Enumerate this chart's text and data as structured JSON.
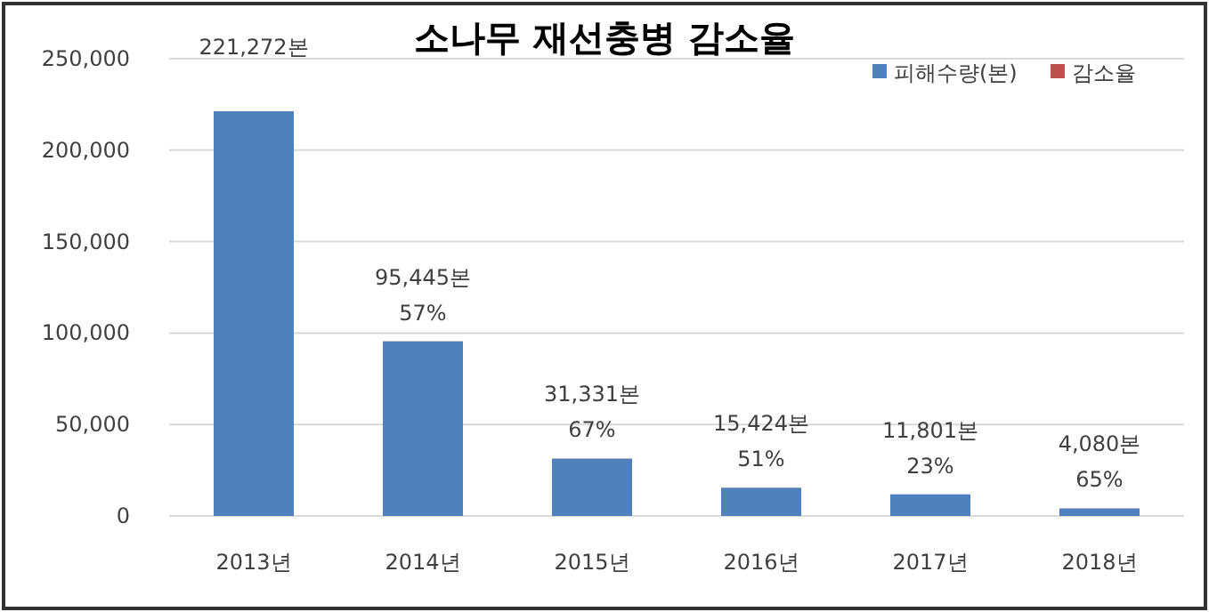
{
  "chart_data": {
    "type": "bar",
    "title": "소나무 재선충병 감소율",
    "categories": [
      "2013년",
      "2014년",
      "2015년",
      "2016년",
      "2017년",
      "2018년"
    ],
    "stacked": true,
    "legend": "top right",
    "grid": "y",
    "ylim": [
      0,
      250000
    ],
    "yticks": [
      {
        "value": 0,
        "label": "0"
      },
      {
        "value": 50000,
        "label": "50,000"
      },
      {
        "value": 100000,
        "label": "100,000"
      },
      {
        "value": 150000,
        "label": "150,000"
      },
      {
        "value": 200000,
        "label": "200,000"
      },
      {
        "value": 250000,
        "label": "250,000"
      }
    ],
    "series": [
      {
        "name": "피해수량(본)",
        "color": "#4f81bd",
        "values": [
          221272,
          95445,
          31331,
          15424,
          11801,
          4080
        ],
        "value_labels": [
          "221,272본",
          "95,445본",
          "31,331본",
          "15,424본",
          "11,801본",
          "4,080본"
        ]
      },
      {
        "name": "감소율",
        "color": "#c0504d",
        "values": [
          null,
          57,
          67,
          51,
          23,
          65
        ],
        "value_labels": [
          null,
          "57%",
          "67%",
          "51%",
          "23%",
          "65%"
        ]
      }
    ]
  }
}
